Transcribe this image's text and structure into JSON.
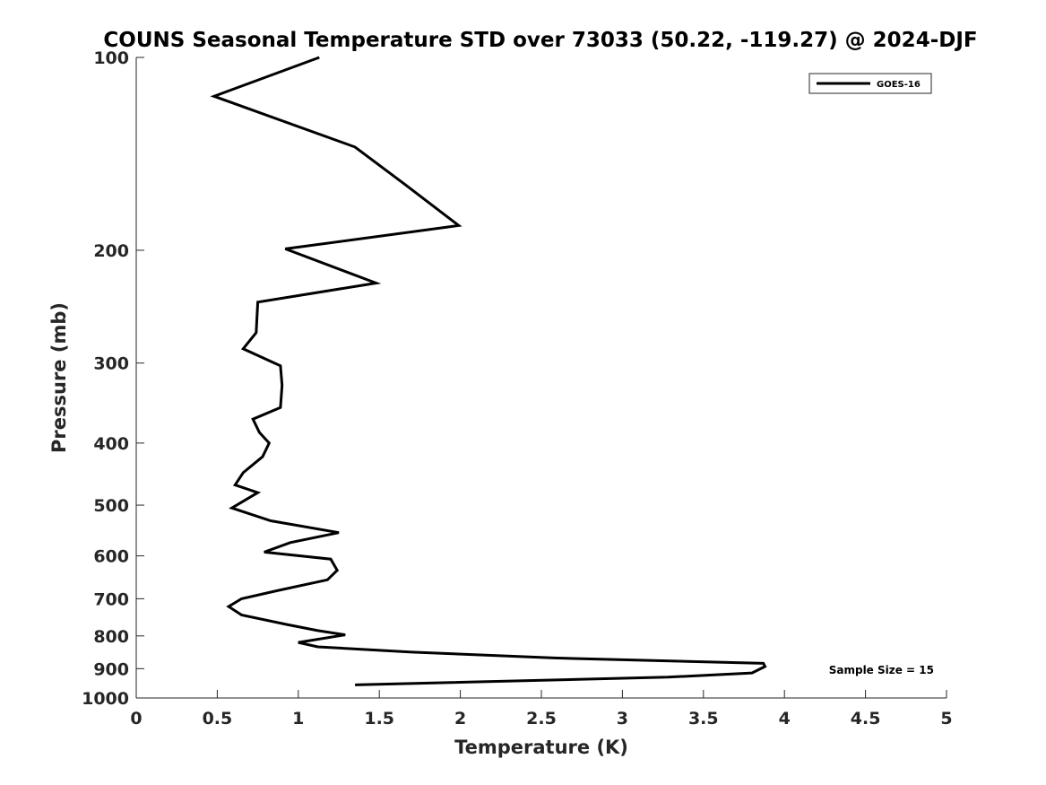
{
  "chart_data": {
    "type": "line",
    "title": "COUNS Seasonal Temperature STD over 73033 (50.22, -119.27) @ 2024-DJF",
    "xlabel": "Temperature (K)",
    "ylabel": "Pressure (mb)",
    "xlim": [
      0,
      5
    ],
    "ylim": [
      100,
      1000
    ],
    "y_scale": "log",
    "y_reversed": true,
    "x_ticks": [
      "0",
      "0.5",
      "1",
      "1.5",
      "2",
      "2.5",
      "3",
      "3.5",
      "4",
      "4.5",
      "5"
    ],
    "x_tick_values": [
      0,
      0.5,
      1,
      1.5,
      2,
      2.5,
      3,
      3.5,
      4,
      4.5,
      5
    ],
    "y_ticks": [
      "100",
      "200",
      "300",
      "400",
      "500",
      "600",
      "700",
      "800",
      "900",
      "1000"
    ],
    "y_tick_values": [
      100,
      200,
      300,
      400,
      500,
      600,
      700,
      800,
      900,
      1000
    ],
    "grid": false,
    "legend_position": "top-right",
    "series": [
      {
        "name": "GOES-16",
        "color": "#000000",
        "points": [
          [
            1.13,
            100
          ],
          [
            0.48,
            115
          ],
          [
            1.35,
            138
          ],
          [
            1.66,
            158
          ],
          [
            1.99,
            183
          ],
          [
            0.92,
            199
          ],
          [
            1.48,
            225
          ],
          [
            0.75,
            241
          ],
          [
            0.74,
            269
          ],
          [
            0.66,
            285
          ],
          [
            0.89,
            303
          ],
          [
            0.9,
            325
          ],
          [
            0.89,
            352
          ],
          [
            0.72,
            367
          ],
          [
            0.76,
            385
          ],
          [
            0.82,
            400
          ],
          [
            0.78,
            420
          ],
          [
            0.66,
            445
          ],
          [
            0.61,
            465
          ],
          [
            0.75,
            478
          ],
          [
            0.59,
            505
          ],
          [
            0.83,
            529
          ],
          [
            1.25,
            552
          ],
          [
            0.95,
            572
          ],
          [
            0.79,
            592
          ],
          [
            1.2,
            607
          ],
          [
            1.24,
            632
          ],
          [
            1.18,
            654
          ],
          [
            0.87,
            680
          ],
          [
            0.65,
            700
          ],
          [
            0.57,
            720
          ],
          [
            0.65,
            742
          ],
          [
            0.93,
            768
          ],
          [
            1.12,
            785
          ],
          [
            1.29,
            797
          ],
          [
            1.0,
            819
          ],
          [
            1.12,
            832
          ],
          [
            1.7,
            848
          ],
          [
            2.58,
            866
          ],
          [
            3.87,
            883
          ],
          [
            3.88,
            893
          ],
          [
            3.8,
            914
          ],
          [
            3.28,
            928
          ],
          [
            1.35,
            954
          ]
        ]
      }
    ],
    "annotations": [
      "Sample Size = 15"
    ]
  }
}
